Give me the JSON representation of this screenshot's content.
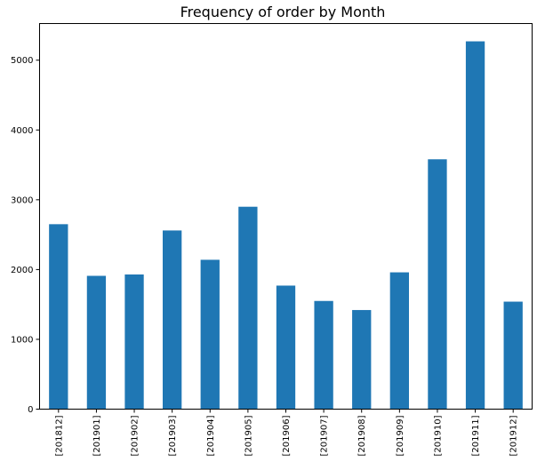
{
  "chart_data": {
    "type": "bar",
    "title": "Frequency of order by Month",
    "xlabel": "",
    "ylabel": "",
    "categories": [
      "[201812]",
      "[201901]",
      "[201902]",
      "[201903]",
      "[201904]",
      "[201905]",
      "[201906]",
      "[201907]",
      "[201908]",
      "[201909]",
      "[201910]",
      "[201911]",
      "[201912]"
    ],
    "values": [
      2650,
      1910,
      1930,
      2560,
      2140,
      2900,
      1770,
      1550,
      1420,
      1960,
      3580,
      5270,
      1540
    ],
    "ylim": [
      0,
      5525
    ],
    "yticks": [
      "0",
      "1000",
      "2000",
      "3000",
      "4000",
      "5000"
    ],
    "bar_color": "#1f77b4",
    "grid": false,
    "legend": "none"
  }
}
